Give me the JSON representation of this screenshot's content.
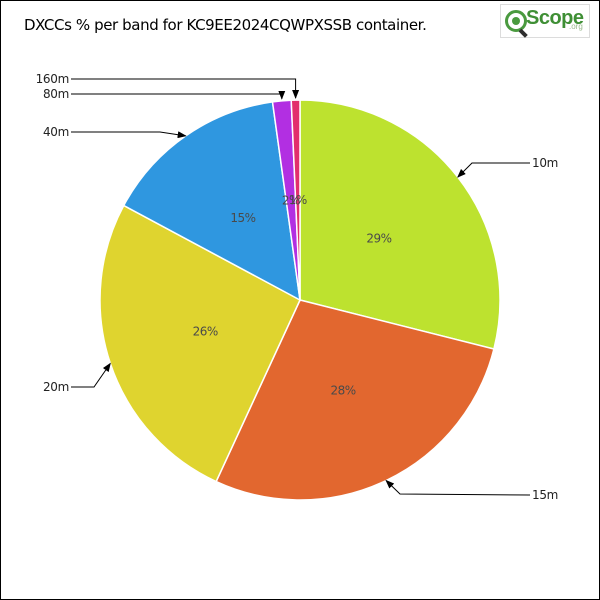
{
  "chart_data": {
    "type": "pie",
    "title": "DXCCs % per band for KC9EE2024CQWPXSSB container.",
    "categories": [
      "10m",
      "15m",
      "20m",
      "40m",
      "80m",
      "160m"
    ],
    "values": [
      29,
      28,
      26,
      15,
      1.5,
      0.7
    ],
    "value_labels": [
      "29%",
      "28%",
      "26%",
      "15%",
      "2%",
      "1%"
    ],
    "colors": [
      "#bde22f",
      "#e2672f",
      "#dfd42f",
      "#2f97e0",
      "#b22fe2",
      "#e22f6d"
    ],
    "start": "12 o'clock",
    "direction": "clockwise"
  },
  "logo": {
    "brand": "Scope",
    "suffix": ".org"
  }
}
